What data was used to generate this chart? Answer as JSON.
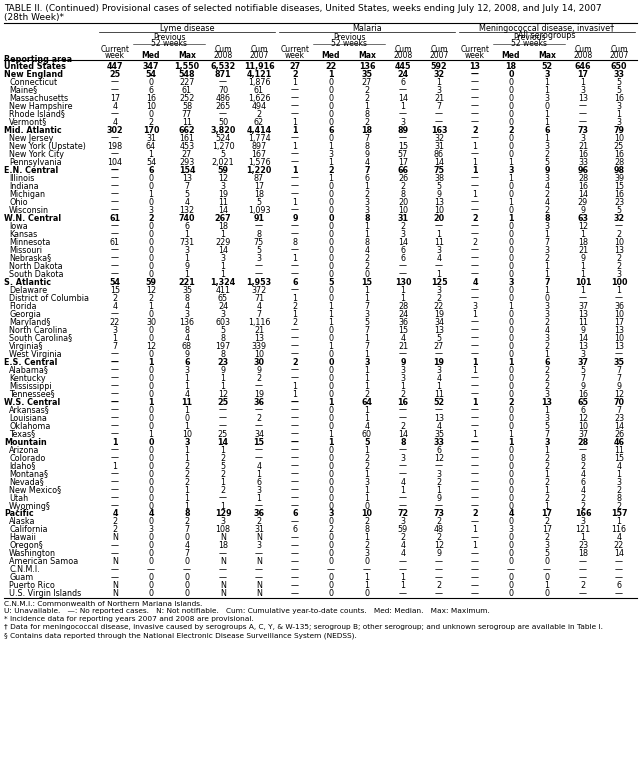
{
  "title_line1": "TABLE II. (Continued) Provisional cases of selected notifiable diseases, United States, weeks ending July 12, 2008, and July 14, 2007",
  "title_line2": "(28th Week)*",
  "footnote_lines": [
    "C.N.M.I.: Commonwealth of Northern Mariana Islands.",
    "U: Unavailable.   —: No reported cases.   N: Not notifiable.   Cum: Cumulative year-to-date counts.   Med: Median.   Max: Maximum.",
    "* Incidence data for reporting years 2007 and 2008 are provisional.",
    "† Data for meningococcal disease, invasive caused by serogroups A, C, Y, & W-135; serogroup B; other serogroup; and unknown serogroup are available in Table I.",
    "§ Contains data reported through the National Electronic Disease Surveillance System (NEDSS)."
  ],
  "section_bold": [
    "United States",
    "New England",
    "Mid. Atlantic",
    "E.N. Central",
    "W.N. Central",
    "S. Atlantic",
    "E.S. Central",
    "W.S. Central",
    "Mountain",
    "Pacific"
  ],
  "rows": [
    [
      "United States",
      "447",
      "347",
      "1,550",
      "6,532",
      "11,916",
      "27",
      "22",
      "136",
      "445",
      "592",
      "13",
      "18",
      "52",
      "646",
      "650"
    ],
    [
      "New England",
      "25",
      "54",
      "548",
      "871",
      "4,121",
      "2",
      "1",
      "35",
      "24",
      "32",
      "—",
      "0",
      "3",
      "17",
      "33"
    ],
    [
      "Connecticut",
      "—",
      "0",
      "227",
      "—",
      "1,876",
      "1",
      "0",
      "27",
      "6",
      "1",
      "—",
      "0",
      "1",
      "1",
      "5"
    ],
    [
      "Maine§",
      "—",
      "6",
      "61",
      "70",
      "61",
      "—",
      "0",
      "2",
      "—",
      "3",
      "—",
      "0",
      "1",
      "3",
      "5"
    ],
    [
      "Massachusetts",
      "17",
      "16",
      "252",
      "486",
      "1,626",
      "—",
      "0",
      "2",
      "14",
      "21",
      "—",
      "0",
      "3",
      "13",
      "16"
    ],
    [
      "New Hampshire",
      "4",
      "10",
      "58",
      "265",
      "494",
      "—",
      "0",
      "1",
      "1",
      "7",
      "—",
      "0",
      "0",
      "—",
      "3"
    ],
    [
      "Rhode Island§",
      "—",
      "0",
      "77",
      "—",
      "2",
      "—",
      "0",
      "8",
      "—",
      "—",
      "—",
      "0",
      "1",
      "—",
      "1"
    ],
    [
      "Vermont§",
      "4",
      "2",
      "11",
      "50",
      "62",
      "1",
      "0",
      "2",
      "3",
      "—",
      "—",
      "0",
      "1",
      "—",
      "3"
    ],
    [
      "Mid. Atlantic",
      "302",
      "170",
      "662",
      "3,820",
      "4,414",
      "1",
      "6",
      "18",
      "89",
      "163",
      "2",
      "2",
      "6",
      "73",
      "79"
    ],
    [
      "New Jersey",
      "—",
      "31",
      "161",
      "524",
      "1,774",
      "—",
      "0",
      "7",
      "—",
      "32",
      "—",
      "0",
      "1",
      "3",
      "10"
    ],
    [
      "New York (Upstate)",
      "198",
      "64",
      "453",
      "1,270",
      "897",
      "1",
      "1",
      "8",
      "15",
      "31",
      "1",
      "0",
      "3",
      "21",
      "25"
    ],
    [
      "New York City",
      "—",
      "1",
      "27",
      "5",
      "167",
      "—",
      "3",
      "9",
      "57",
      "86",
      "—",
      "0",
      "2",
      "16",
      "16"
    ],
    [
      "Pennsylvania",
      "104",
      "54",
      "293",
      "2,021",
      "1,576",
      "—",
      "1",
      "4",
      "17",
      "14",
      "1",
      "1",
      "5",
      "33",
      "28"
    ],
    [
      "E.N. Central",
      "—",
      "6",
      "154",
      "59",
      "1,220",
      "1",
      "2",
      "7",
      "66",
      "75",
      "1",
      "3",
      "9",
      "96",
      "98"
    ],
    [
      "Illinois",
      "—",
      "0",
      "13",
      "12",
      "87",
      "—",
      "1",
      "6",
      "26",
      "38",
      "—",
      "1",
      "3",
      "28",
      "39"
    ],
    [
      "Indiana",
      "—",
      "0",
      "7",
      "3",
      "17",
      "—",
      "0",
      "1",
      "2",
      "5",
      "—",
      "0",
      "4",
      "16",
      "15"
    ],
    [
      "Michigan",
      "—",
      "1",
      "5",
      "19",
      "18",
      "—",
      "0",
      "2",
      "8",
      "9",
      "1",
      "0",
      "2",
      "14",
      "16"
    ],
    [
      "Ohio",
      "—",
      "0",
      "4",
      "11",
      "5",
      "1",
      "0",
      "3",
      "20",
      "13",
      "—",
      "1",
      "4",
      "29",
      "23"
    ],
    [
      "Wisconsin",
      "—",
      "3",
      "132",
      "14",
      "1,093",
      "—",
      "0",
      "3",
      "10",
      "10",
      "—",
      "0",
      "2",
      "9",
      "5"
    ],
    [
      "W.N. Central",
      "61",
      "2",
      "740",
      "267",
      "91",
      "9",
      "0",
      "8",
      "31",
      "20",
      "2",
      "1",
      "8",
      "63",
      "32"
    ],
    [
      "Iowa",
      "—",
      "0",
      "6",
      "18",
      "—",
      "—",
      "0",
      "1",
      "2",
      "—",
      "—",
      "0",
      "3",
      "12",
      "—"
    ],
    [
      "Kansas",
      "—",
      "0",
      "1",
      "1",
      "8",
      "—",
      "0",
      "1",
      "3",
      "1",
      "—",
      "0",
      "1",
      "1",
      "2"
    ],
    [
      "Minnesota",
      "61",
      "0",
      "731",
      "229",
      "75",
      "8",
      "0",
      "8",
      "14",
      "11",
      "2",
      "0",
      "7",
      "18",
      "10"
    ],
    [
      "Missouri",
      "—",
      "0",
      "3",
      "14",
      "5",
      "—",
      "0",
      "4",
      "6",
      "3",
      "—",
      "0",
      "3",
      "21",
      "13"
    ],
    [
      "Nebraska§",
      "—",
      "0",
      "1",
      "3",
      "3",
      "1",
      "0",
      "2",
      "6",
      "4",
      "—",
      "0",
      "2",
      "9",
      "2"
    ],
    [
      "North Dakota",
      "—",
      "0",
      "9",
      "1",
      "—",
      "—",
      "0",
      "2",
      "—",
      "—",
      "—",
      "0",
      "1",
      "1",
      "2"
    ],
    [
      "South Dakota",
      "—",
      "0",
      "1",
      "1",
      "—",
      "—",
      "0",
      "0",
      "—",
      "1",
      "—",
      "0",
      "1",
      "1",
      "3"
    ],
    [
      "S. Atlantic",
      "54",
      "59",
      "221",
      "1,324",
      "1,953",
      "6",
      "5",
      "15",
      "130",
      "125",
      "4",
      "3",
      "7",
      "101",
      "100"
    ],
    [
      "Delaware",
      "15",
      "12",
      "35",
      "411",
      "372",
      "—",
      "0",
      "1",
      "1",
      "3",
      "—",
      "0",
      "1",
      "1",
      "1"
    ],
    [
      "District of Columbia",
      "2",
      "2",
      "8",
      "65",
      "71",
      "1",
      "0",
      "1",
      "1",
      "2",
      "—",
      "0",
      "0",
      "—",
      "—"
    ],
    [
      "Florida",
      "4",
      "1",
      "4",
      "24",
      "4",
      "2",
      "1",
      "7",
      "28",
      "22",
      "3",
      "1",
      "3",
      "37",
      "36"
    ],
    [
      "Georgia",
      "—",
      "0",
      "3",
      "3",
      "7",
      "1",
      "1",
      "3",
      "24",
      "19",
      "1",
      "0",
      "3",
      "13",
      "10"
    ],
    [
      "Maryland§",
      "22",
      "30",
      "136",
      "603",
      "1,116",
      "2",
      "1",
      "5",
      "36",
      "34",
      "—",
      "0",
      "2",
      "11",
      "17"
    ],
    [
      "North Carolina",
      "3",
      "0",
      "8",
      "5",
      "21",
      "—",
      "0",
      "7",
      "15",
      "13",
      "—",
      "0",
      "4",
      "9",
      "13"
    ],
    [
      "South Carolina§",
      "1",
      "0",
      "4",
      "8",
      "13",
      "—",
      "0",
      "1",
      "4",
      "5",
      "—",
      "0",
      "3",
      "14",
      "10"
    ],
    [
      "Virginia§",
      "7",
      "12",
      "68",
      "197",
      "339",
      "—",
      "1",
      "7",
      "21",
      "27",
      "—",
      "0",
      "2",
      "13",
      "13"
    ],
    [
      "West Virginia",
      "—",
      "0",
      "9",
      "8",
      "10",
      "—",
      "0",
      "1",
      "—",
      "—",
      "—",
      "0",
      "1",
      "3",
      "—"
    ],
    [
      "E.S. Central",
      "—",
      "1",
      "6",
      "23",
      "30",
      "2",
      "0",
      "3",
      "9",
      "19",
      "1",
      "1",
      "6",
      "37",
      "35"
    ],
    [
      "Alabama§",
      "—",
      "0",
      "3",
      "9",
      "9",
      "—",
      "0",
      "1",
      "3",
      "3",
      "1",
      "0",
      "2",
      "5",
      "7"
    ],
    [
      "Kentucky",
      "—",
      "0",
      "1",
      "1",
      "2",
      "—",
      "0",
      "1",
      "3",
      "4",
      "—",
      "0",
      "2",
      "7",
      "7"
    ],
    [
      "Mississippi",
      "—",
      "0",
      "1",
      "1",
      "—",
      "1",
      "0",
      "1",
      "1",
      "1",
      "—",
      "0",
      "2",
      "9",
      "9"
    ],
    [
      "Tennessee§",
      "—",
      "0",
      "4",
      "12",
      "19",
      "1",
      "0",
      "2",
      "2",
      "11",
      "—",
      "0",
      "3",
      "16",
      "12"
    ],
    [
      "W.S. Central",
      "—",
      "1",
      "11",
      "25",
      "36",
      "—",
      "1",
      "64",
      "16",
      "52",
      "1",
      "2",
      "13",
      "65",
      "70"
    ],
    [
      "Arkansas§",
      "—",
      "0",
      "1",
      "—",
      "—",
      "—",
      "0",
      "1",
      "—",
      "—",
      "—",
      "0",
      "1",
      "6",
      "7"
    ],
    [
      "Louisiana",
      "—",
      "0",
      "0",
      "—",
      "2",
      "—",
      "0",
      "1",
      "—",
      "13",
      "—",
      "0",
      "3",
      "12",
      "23"
    ],
    [
      "Oklahoma",
      "—",
      "0",
      "1",
      "—",
      "—",
      "—",
      "0",
      "4",
      "2",
      "4",
      "—",
      "0",
      "5",
      "10",
      "14"
    ],
    [
      "Texas§",
      "—",
      "1",
      "10",
      "25",
      "34",
      "—",
      "1",
      "60",
      "14",
      "35",
      "1",
      "1",
      "7",
      "37",
      "26"
    ],
    [
      "Mountain",
      "1",
      "0",
      "3",
      "14",
      "15",
      "—",
      "1",
      "5",
      "8",
      "33",
      "—",
      "1",
      "3",
      "28",
      "46"
    ],
    [
      "Arizona",
      "—",
      "0",
      "1",
      "1",
      "—",
      "—",
      "0",
      "1",
      "—",
      "6",
      "—",
      "0",
      "1",
      "—",
      "11"
    ],
    [
      "Colorado",
      "—",
      "0",
      "1",
      "2",
      "—",
      "—",
      "0",
      "2",
      "3",
      "12",
      "—",
      "0",
      "2",
      "8",
      "15"
    ],
    [
      "Idaho§",
      "1",
      "0",
      "2",
      "5",
      "4",
      "—",
      "0",
      "2",
      "—",
      "—",
      "—",
      "0",
      "2",
      "2",
      "4"
    ],
    [
      "Montana§",
      "—",
      "0",
      "2",
      "2",
      "1",
      "—",
      "0",
      "1",
      "—",
      "3",
      "—",
      "0",
      "1",
      "4",
      "1"
    ],
    [
      "Nevada§",
      "—",
      "0",
      "2",
      "1",
      "6",
      "—",
      "0",
      "3",
      "4",
      "2",
      "—",
      "0",
      "2",
      "6",
      "3"
    ],
    [
      "New Mexico§",
      "—",
      "0",
      "1",
      "2",
      "3",
      "—",
      "0",
      "1",
      "1",
      "1",
      "—",
      "0",
      "1",
      "4",
      "2"
    ],
    [
      "Utah",
      "—",
      "0",
      "1",
      "—",
      "1",
      "—",
      "0",
      "1",
      "—",
      "9",
      "—",
      "0",
      "2",
      "2",
      "8"
    ],
    [
      "Wyoming§",
      "—",
      "0",
      "1",
      "1",
      "—",
      "—",
      "0",
      "0",
      "—",
      "—",
      "—",
      "0",
      "1",
      "2",
      "2"
    ],
    [
      "Pacific",
      "4",
      "4",
      "8",
      "129",
      "36",
      "6",
      "3",
      "10",
      "72",
      "73",
      "2",
      "4",
      "17",
      "166",
      "157"
    ],
    [
      "Alaska",
      "2",
      "0",
      "2",
      "3",
      "2",
      "—",
      "0",
      "2",
      "3",
      "2",
      "—",
      "0",
      "2",
      "3",
      "1"
    ],
    [
      "California",
      "2",
      "3",
      "7",
      "108",
      "31",
      "6",
      "2",
      "8",
      "59",
      "48",
      "1",
      "3",
      "17",
      "121",
      "116"
    ],
    [
      "Hawaii",
      "N",
      "0",
      "0",
      "N",
      "N",
      "—",
      "0",
      "1",
      "2",
      "2",
      "—",
      "0",
      "2",
      "1",
      "4"
    ],
    [
      "Oregon§",
      "—",
      "0",
      "4",
      "18",
      "3",
      "—",
      "0",
      "2",
      "4",
      "12",
      "1",
      "0",
      "3",
      "23",
      "22"
    ],
    [
      "Washington",
      "—",
      "0",
      "7",
      "—",
      "—",
      "—",
      "0",
      "3",
      "4",
      "9",
      "—",
      "0",
      "5",
      "18",
      "14"
    ],
    [
      "American Samoa",
      "N",
      "0",
      "0",
      "N",
      "N",
      "—",
      "0",
      "0",
      "—",
      "—",
      "—",
      "0",
      "0",
      "—",
      "—"
    ],
    [
      "C.N.M.I.",
      "—",
      "—",
      "—",
      "—",
      "—",
      "—",
      "—",
      "—",
      "—",
      "—",
      "—",
      "—",
      "—",
      "—",
      "—"
    ],
    [
      "Guam",
      "—",
      "0",
      "0",
      "—",
      "—",
      "—",
      "0",
      "1",
      "1",
      "—",
      "—",
      "0",
      "0",
      "—",
      "—"
    ],
    [
      "Puerto Rico",
      "N",
      "0",
      "0",
      "N",
      "N",
      "—",
      "0",
      "1",
      "1",
      "2",
      "—",
      "0",
      "1",
      "2",
      "6"
    ],
    [
      "U.S. Virgin Islands",
      "N",
      "0",
      "0",
      "N",
      "N",
      "—",
      "0",
      "0",
      "—",
      "—",
      "—",
      "0",
      "0",
      "—",
      "—"
    ]
  ]
}
